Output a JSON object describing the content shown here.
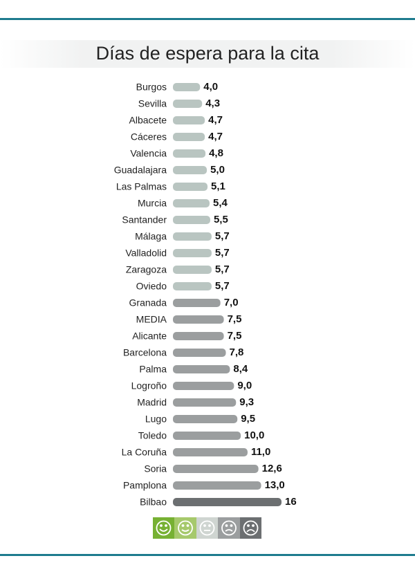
{
  "chart_data": {
    "type": "bar",
    "orientation": "horizontal",
    "title": "Días de espera para la cita",
    "categories": [
      "Burgos",
      "Sevilla",
      "Albacete",
      "Cáceres",
      "Valencia",
      "Guadalajara",
      "Las Palmas",
      "Murcia",
      "Santander",
      "Málaga",
      "Valladolid",
      "Zaragoza",
      "Oviedo",
      "Granada",
      "MEDIA",
      "Alicante",
      "Barcelona",
      "Palma",
      "Logroño",
      "Madrid",
      "Lugo",
      "Toledo",
      "La Coruña",
      "Soria",
      "Pamplona",
      "Bilbao"
    ],
    "values": [
      4.0,
      4.3,
      4.7,
      4.7,
      4.8,
      5.0,
      5.1,
      5.4,
      5.5,
      5.7,
      5.7,
      5.7,
      5.7,
      7.0,
      7.5,
      7.5,
      7.8,
      8.4,
      9.0,
      9.3,
      9.5,
      10.0,
      11.0,
      12.6,
      13.0,
      16
    ],
    "value_labels": [
      "4,0",
      "4,3",
      "4,7",
      "4,7",
      "4,8",
      "5,0",
      "5,1",
      "5,4",
      "5,5",
      "5,7",
      "5,7",
      "5,7",
      "5,7",
      "7,0",
      "7,5",
      "7,5",
      "7,8",
      "8,4",
      "9,0",
      "9,3",
      "9,5",
      "10,0",
      "11,0",
      "12,6",
      "13,0",
      "16"
    ],
    "colors": [
      "#b9c5c1",
      "#b9c5c1",
      "#b9c5c1",
      "#b9c5c1",
      "#b9c5c1",
      "#b9c5c1",
      "#b9c5c1",
      "#b9c5c1",
      "#b9c5c1",
      "#b9c5c1",
      "#b9c5c1",
      "#b9c5c1",
      "#b9c5c1",
      "#9b9e9f",
      "#9b9e9f",
      "#9b9e9f",
      "#9b9e9f",
      "#9b9e9f",
      "#9b9e9f",
      "#9b9e9f",
      "#9b9e9f",
      "#9b9e9f",
      "#9b9e9f",
      "#9b9e9f",
      "#9b9e9f",
      "#6c6f71"
    ]
  }
}
